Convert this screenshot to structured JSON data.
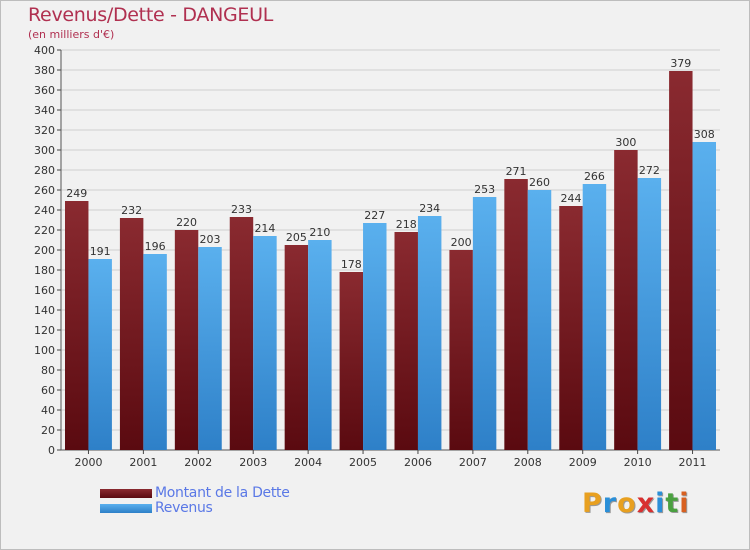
{
  "title": "Revenus/Dette - DANGEUL",
  "subtitle": "(en milliers d'€)",
  "colors": {
    "dette": "#7a1c22",
    "revenus": "#4ea6e6",
    "title": "#b03050",
    "legend_text": "#5a78e6"
  },
  "legend": [
    {
      "label": "Montant de la Dette",
      "color": "#6a0f15"
    },
    {
      "label": "Revenus",
      "color": "#4ea6e6"
    }
  ],
  "logo": {
    "letters": [
      "P",
      "r",
      "o",
      "x",
      "i",
      "t",
      "i"
    ],
    "colors": [
      "#e8a020",
      "#2a8fd8",
      "#e8a020",
      "#d83030",
      "#2a8fd8",
      "#4aa040",
      "#d86020"
    ]
  },
  "chart_data": {
    "type": "bar",
    "title": "Revenus/Dette - DANGEUL",
    "subtitle": "(en milliers d'€)",
    "xlabel": "",
    "ylabel": "",
    "ylim": [
      0,
      400
    ],
    "ytick_step": 20,
    "grid": true,
    "legend_position": "bottom-left",
    "categories": [
      "2000",
      "2001",
      "2002",
      "2003",
      "2004",
      "2005",
      "2006",
      "2007",
      "2008",
      "2009",
      "2010",
      "2011"
    ],
    "series": [
      {
        "name": "Montant de la Dette",
        "values": [
          249,
          232,
          220,
          233,
          205,
          178,
          218,
          200,
          271,
          244,
          300,
          379
        ]
      },
      {
        "name": "Revenus",
        "values": [
          191,
          196,
          203,
          214,
          210,
          227,
          234,
          253,
          260,
          266,
          272,
          308
        ]
      }
    ]
  }
}
